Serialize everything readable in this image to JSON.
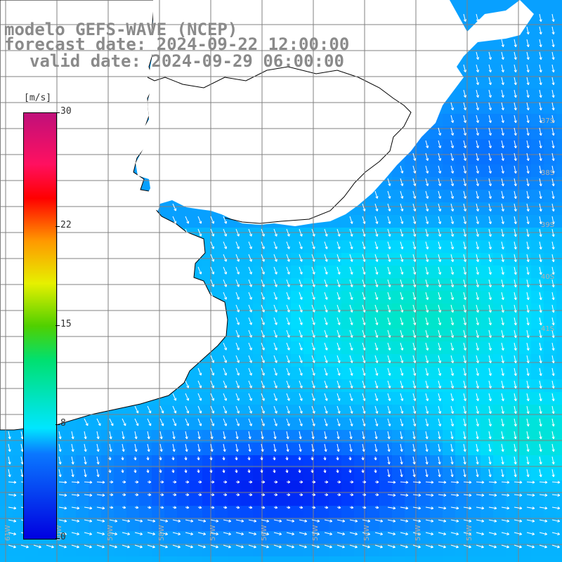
{
  "header": {
    "model_line": "modelo GEFS-WAVE (NCEP)",
    "forecast_line": "forecast date: 2024-09-22 12:00:00",
    "valid_line": "valid date: 2024-09-29 06:00:00"
  },
  "colorbar": {
    "unit": "[m/s]",
    "ticks": [
      "0",
      "8",
      "15",
      "22",
      "30"
    ],
    "tick_values": [
      0,
      8,
      15,
      22,
      30
    ],
    "min": 0,
    "max": 30,
    "colors": [
      "#0000e0",
      "#0a78ff",
      "#00e6ff",
      "#00e070",
      "#50d000",
      "#e6f000",
      "#ff9800",
      "#ff0000",
      "#ff1060",
      "#c0107a"
    ]
  },
  "map": {
    "land_color": "#ffffff",
    "coast_color": "#000000",
    "grid_color": "#808080",
    "lat_labels": [
      "37S",
      "38S",
      "39S",
      "40S",
      "41S"
    ],
    "lon_labels": [
      "61W",
      "60W",
      "59W",
      "58W",
      "57W",
      "56W",
      "55W",
      "54W",
      "53W",
      "52W"
    ],
    "field": "wind speed and direction arrows",
    "arrow_color": "#ffffff"
  }
}
